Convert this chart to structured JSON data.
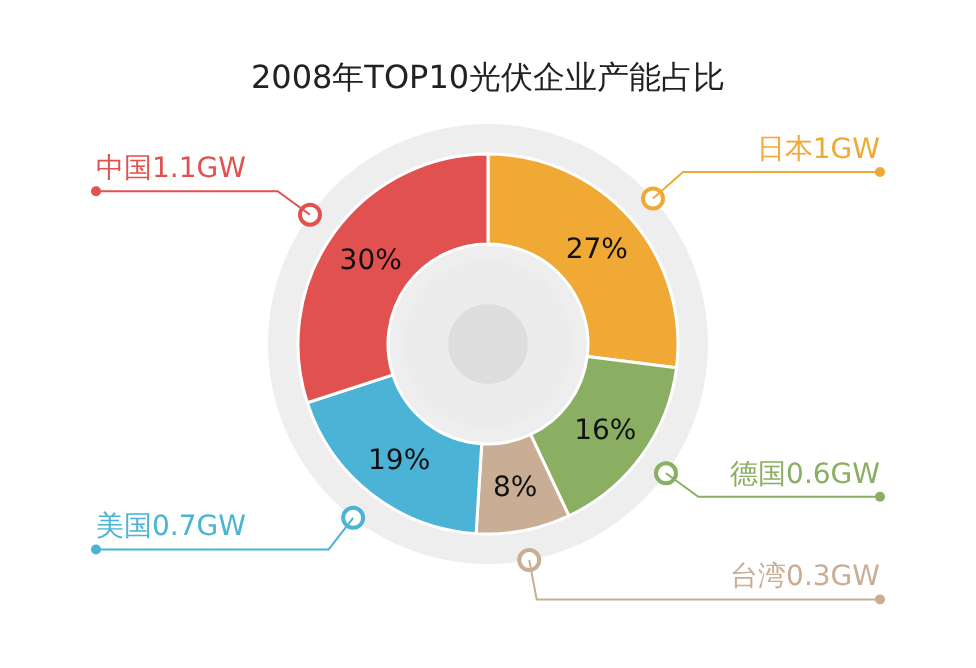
{
  "chart_data": {
    "type": "donut",
    "title": "2008年TOP10光伏企业产能占比",
    "categories": [
      "日本1GW",
      "德国0.6GW",
      "台湾0.3GW",
      "美国0.7GW",
      "中国1.1GW"
    ],
    "values": [
      27,
      16,
      8,
      19,
      30
    ],
    "colors": [
      "#f0a935",
      "#8aae62",
      "#c9ad94",
      "#4bb3d6",
      "#e0514f"
    ],
    "value_labels": [
      "27%",
      "16%",
      "8%",
      "19%",
      "30%"
    ]
  }
}
